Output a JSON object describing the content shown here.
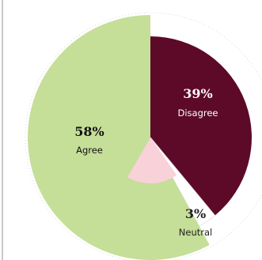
{
  "chart_data": {
    "type": "pie",
    "start_angle_deg": 0,
    "slices": [
      {
        "name": "Disagree",
        "label": "Disagree",
        "value": 39,
        "value_label": "39%",
        "color": "#5c0a27",
        "radius_scale": 1.0,
        "text_color": "#ffffff"
      },
      {
        "name": "Neutral",
        "label": "Neutral",
        "value": 3,
        "value_label": "3%",
        "color": "#ffffff",
        "radius_scale": 1.0,
        "text_color": "#222222"
      },
      {
        "name": "Agree",
        "label": "Agree",
        "value": 58,
        "value_label": "58%",
        "color": "#c5de98",
        "radius_scale": 1.0,
        "text_color": "#111111"
      }
    ],
    "inner_accent_color": "#f9d1d9"
  }
}
